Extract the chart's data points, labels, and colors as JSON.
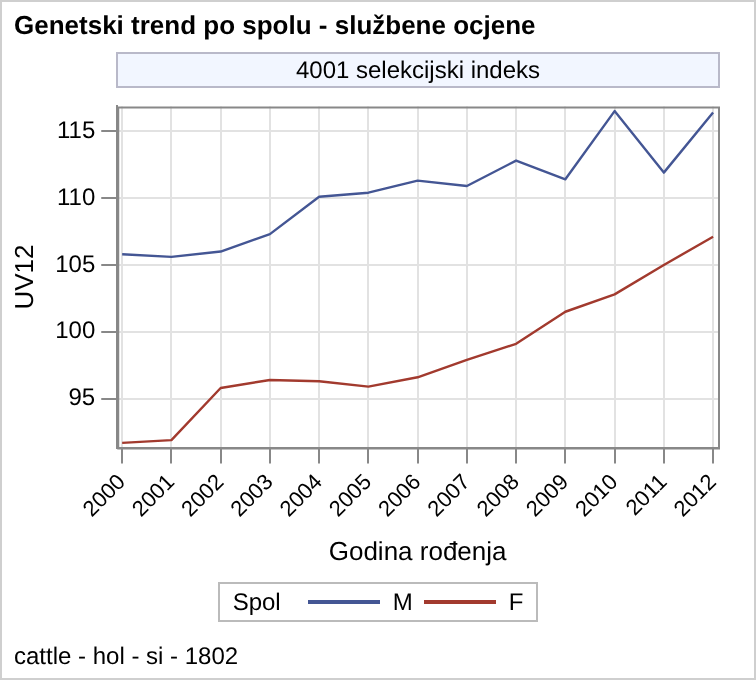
{
  "chart_data": {
    "type": "line",
    "title": "Genetski trend po spolu - službene ocjene",
    "subtitle": "4001 selekcijski indeks",
    "xlabel": "Godina rođenja",
    "ylabel": "UV12",
    "legend_title": "Spol",
    "legend": "bottom",
    "grid": true,
    "marker": "none",
    "line_style": "solid",
    "x": [
      2000,
      2001,
      2002,
      2003,
      2004,
      2005,
      2006,
      2007,
      2008,
      2009,
      2010,
      2011,
      2012
    ],
    "xlim": [
      1999.9,
      2012.1
    ],
    "xticks": [
      2000,
      2001,
      2002,
      2003,
      2004,
      2005,
      2006,
      2007,
      2008,
      2009,
      2010,
      2011,
      2012
    ],
    "ylim": [
      91.35,
      116.85
    ],
    "yticks": [
      95,
      100,
      105,
      110,
      115
    ],
    "series": [
      {
        "name": "M",
        "color": "#445694",
        "values": [
          105.8,
          105.6,
          106.0,
          107.3,
          110.1,
          110.4,
          111.3,
          110.9,
          112.8,
          111.4,
          116.5,
          111.9,
          116.4
        ]
      },
      {
        "name": "F",
        "color": "#a23a2e",
        "values": [
          91.7,
          91.9,
          95.8,
          96.4,
          96.3,
          95.9,
          96.6,
          97.9,
          99.1,
          101.5,
          102.8,
          105.0,
          107.1
        ]
      }
    ],
    "annotations": [
      "cattle - hol - si - 1802"
    ]
  }
}
